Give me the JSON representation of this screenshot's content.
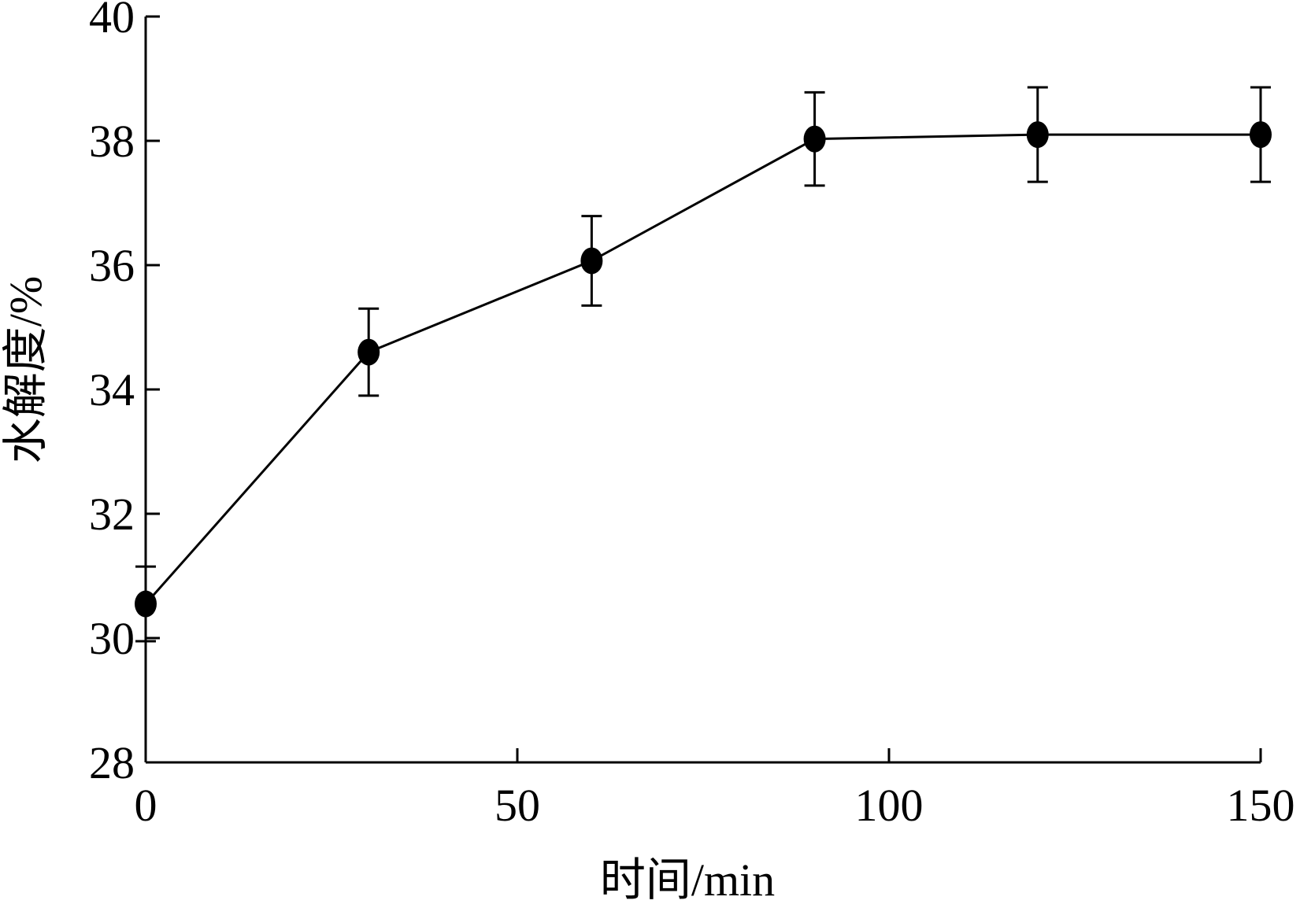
{
  "chart_data": {
    "type": "line",
    "xlabel": "时间/min",
    "ylabel": "水解度/%",
    "xlim": [
      0,
      150
    ],
    "ylim": [
      28,
      40
    ],
    "xticks": [
      0,
      50,
      100,
      150
    ],
    "yticks": [
      28,
      30,
      32,
      34,
      36,
      38,
      40
    ],
    "grid": false,
    "legend": "none",
    "series": [
      {
        "color": "#000000",
        "marker": "filled-circle",
        "x": [
          0,
          30,
          60,
          90,
          120,
          150
        ],
        "y": [
          30.55,
          34.6,
          36.07,
          38.03,
          38.1,
          38.1
        ],
        "error": [
          0.6,
          0.7,
          0.72,
          0.75,
          0.76,
          0.76
        ]
      }
    ]
  }
}
